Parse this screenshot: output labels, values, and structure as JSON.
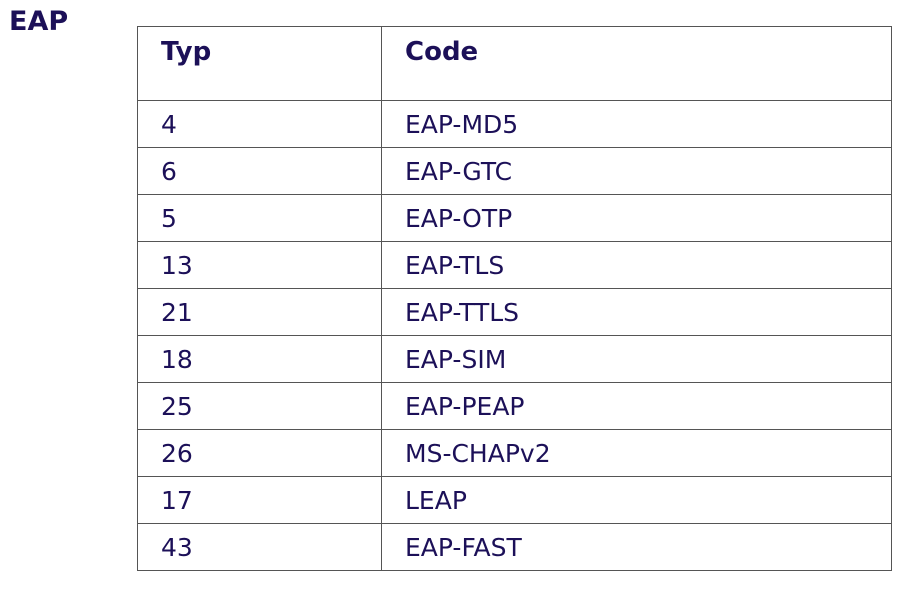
{
  "title": "EAP",
  "table": {
    "headers": [
      "Typ",
      "Code"
    ],
    "rows": [
      [
        "4",
        "EAP-MD5"
      ],
      [
        "6",
        "EAP-GTC"
      ],
      [
        "5",
        "EAP-OTP"
      ],
      [
        "13",
        "EAP-TLS"
      ],
      [
        "21",
        "EAP-TTLS"
      ],
      [
        "18",
        "EAP-SIM"
      ],
      [
        "25",
        "EAP-PEAP"
      ],
      [
        "26",
        "MS-CHAPv2"
      ],
      [
        "17",
        "LEAP"
      ],
      [
        "43",
        "EAP-FAST"
      ]
    ]
  },
  "colors": {
    "text": "#1c1058",
    "border": "#555555"
  }
}
